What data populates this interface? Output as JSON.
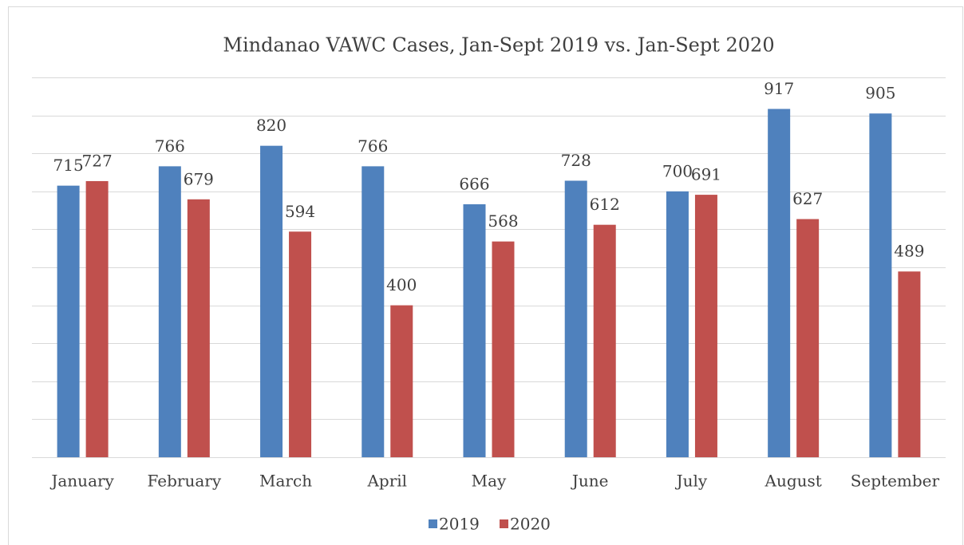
{
  "chart_data": {
    "type": "bar",
    "title": "Mindanao VAWC Cases, Jan-Sept 2019 vs. Jan-Sept 2020",
    "categories": [
      "January",
      "February",
      "March",
      "April",
      "May",
      "June",
      "July",
      "August",
      "September"
    ],
    "series": [
      {
        "name": "2019",
        "color": "#4f81bd",
        "values": [
          715,
          766,
          820,
          766,
          666,
          728,
          700,
          917,
          905
        ]
      },
      {
        "name": "2020",
        "color": "#c0504d",
        "values": [
          727,
          679,
          594,
          400,
          568,
          612,
          691,
          627,
          489
        ]
      }
    ],
    "ylim": [
      0,
      1000
    ],
    "yticks": [
      0,
      100,
      200,
      300,
      400,
      500,
      600,
      700,
      800,
      900,
      1000
    ],
    "ytick_labels": false,
    "grid": true,
    "legend": "bottom"
  }
}
